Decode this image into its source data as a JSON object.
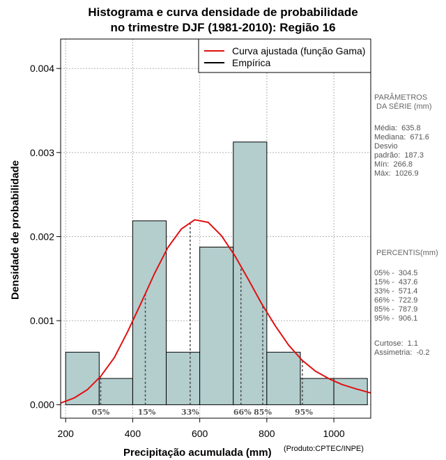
{
  "title": {
    "line1": "Histograma e curva densidade de probabilidade",
    "line2": "no trimestre DJF (1981-2010): Região 16"
  },
  "axes": {
    "xlabel": "Precipitação acumulada (mm)",
    "ylabel": "Densidade de probabilidade",
    "credit": "(Produto:CPTEC/INPE)"
  },
  "legend": {
    "fit_label": "Curva ajustada (função Gama)",
    "empirical_label": "Empírica",
    "fit_color": "#e01010",
    "empirical_color": "#000000"
  },
  "colors": {
    "bar_fill": "#b4cece",
    "grid": "#b0b0b0",
    "percentile_line": "#444444"
  },
  "chart_data": {
    "type": "bar",
    "title": "Histograma e curva densidade de probabilidade no trimestre DJF (1981-2010): Região 16",
    "xlabel": "Precipitação acumulada (mm)",
    "ylabel": "Densidade de probabilidade",
    "xlim": [
      185,
      1110
    ],
    "ylim": [
      -0.00016,
      0.00435
    ],
    "x_ticks": [
      200,
      400,
      600,
      800,
      1000
    ],
    "y_ticks": [
      0,
      0.001,
      0.002,
      0.003,
      0.004
    ],
    "y_tick_labels": [
      "0.000",
      "0.001",
      "0.002",
      "0.003",
      "0.004"
    ],
    "grid": true,
    "legend_position": "top-right",
    "bins": [
      {
        "from": 200,
        "to": 300,
        "density": 0.000625
      },
      {
        "from": 300,
        "to": 400,
        "density": 0.0003125
      },
      {
        "from": 400,
        "to": 500,
        "density": 0.0021875
      },
      {
        "from": 500,
        "to": 600,
        "density": 0.000625
      },
      {
        "from": 600,
        "to": 700,
        "density": 0.001875
      },
      {
        "from": 700,
        "to": 800,
        "density": 0.003125
      },
      {
        "from": 800,
        "to": 900,
        "density": 0.000625
      },
      {
        "from": 900,
        "to": 1000,
        "density": 0.0003125
      },
      {
        "from": 1000,
        "to": 1100,
        "density": 0.0003125
      }
    ],
    "fitted_curve": {
      "name": "Curva ajustada (função Gama)",
      "x": [
        185,
        225,
        265,
        305,
        345,
        385,
        425,
        465,
        505,
        545,
        585,
        625,
        665,
        705,
        745,
        785,
        825,
        865,
        905,
        945,
        985,
        1025,
        1065,
        1110
      ],
      "y": [
        2e-05,
        8e-05,
        0.00018,
        0.00034,
        0.00056,
        0.00087,
        0.00121,
        0.00156,
        0.00187,
        0.00209,
        0.0022,
        0.00217,
        0.00201,
        0.00177,
        0.00149,
        0.0012,
        0.00094,
        0.00071,
        0.00053,
        0.0004,
        0.00031,
        0.00024,
        0.00019,
        0.00014
      ]
    },
    "percentiles": [
      {
        "label": "05%",
        "x": 304.5
      },
      {
        "label": "15%",
        "x": 437.6
      },
      {
        "label": "33%",
        "x": 571.4
      },
      {
        "label": "66%",
        "x": 722.9
      },
      {
        "label": "85%",
        "x": 787.9
      },
      {
        "label": "95%",
        "x": 906.1
      }
    ]
  },
  "side_panel": {
    "params_title": "PARÂMETROS\n DA SÉRIE (mm)",
    "params_lines": [
      "Média:  635.8",
      "Mediana:  671.6",
      "Desvio",
      "padrão:  187.3",
      "Mín:  266.8",
      "Máx:  1026.9"
    ],
    "percentis_title": " PERCENTIS(mm)",
    "percentis_lines": [
      "05% -  304.5",
      "15% -  437.6",
      "33% -  571.4",
      "66% -  722.9",
      "85% -  787.9",
      "95% -  906.1"
    ],
    "stats_lines": [
      "Curtose:  1.1",
      "Assimetria:  -0.2"
    ]
  }
}
